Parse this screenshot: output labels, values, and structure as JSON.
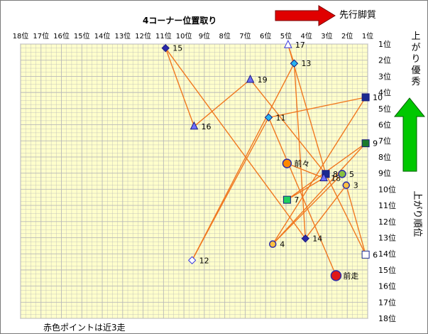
{
  "chart_data": {
    "type": "scatter",
    "title": "4コーナー位置取り",
    "x_arrow_label": "先行脚質",
    "y_arrow_top_label": "上がり優秀",
    "y_arrow_bottom_label": "上がり順位",
    "footnote": "赤色ポイントは近3走",
    "x_ticks": [
      "18位",
      "17位",
      "16位",
      "15位",
      "14位",
      "13位",
      "12位",
      "11位",
      "10位",
      "9位",
      "8位",
      "7位",
      "6位",
      "5位",
      "4位",
      "3位",
      "2位",
      "1位"
    ],
    "y_ticks": [
      "1位",
      "2位",
      "3位",
      "4位",
      "5位",
      "6位",
      "7位",
      "8位",
      "9位",
      "10位",
      "11位",
      "12位",
      "13位",
      "14位",
      "15位",
      "16位",
      "17位",
      "18位"
    ],
    "xlim": [
      18,
      1
    ],
    "ylim": [
      1,
      18
    ],
    "colors": {
      "plot_bg": "#ffffcc",
      "grid": "#b8b8b8",
      "line": "#f07820",
      "arrow_red": "#e00000",
      "arrow_green": "#00c800"
    },
    "points": [
      {
        "label": "15",
        "x": 10.9,
        "y": 1.25,
        "shape": "diamond",
        "fill": "#2a2aa8"
      },
      {
        "label": "17",
        "x": 4.9,
        "y": 1.05,
        "shape": "triangle",
        "fill": "#ffffff",
        "stroke": "#3a3adf"
      },
      {
        "label": "13",
        "x": 4.6,
        "y": 2.2,
        "shape": "diamond",
        "fill": "#28b4f0"
      },
      {
        "label": "19",
        "x": 6.75,
        "y": 3.2,
        "shape": "triangle",
        "fill": "#6a6af0"
      },
      {
        "label": "10",
        "x": 1.1,
        "y": 4.3,
        "shape": "square",
        "fill": "#1a2a90"
      },
      {
        "label": "11",
        "x": 5.85,
        "y": 5.55,
        "shape": "diamond",
        "fill": "#28b4f0"
      },
      {
        "label": "16",
        "x": 9.5,
        "y": 6.1,
        "shape": "triangle",
        "fill": "#7070ff"
      },
      {
        "label": "9",
        "x": 1.1,
        "y": 7.15,
        "shape": "square",
        "fill": "#1a7a2a"
      },
      {
        "label": "前々",
        "x": 4.95,
        "y": 8.4,
        "shape": "circle",
        "fill": "#ff8800",
        "stroke": "#2a2aa8",
        "r": 6
      },
      {
        "label": "8",
        "x": 3.05,
        "y": 9.05,
        "shape": "square",
        "fill": "#1a2a90"
      },
      {
        "label": "18",
        "x": 3.15,
        "y": 9.3,
        "shape": "triangle",
        "fill": "#7070ff"
      },
      {
        "label": "5",
        "x": 2.25,
        "y": 9.05,
        "shape": "circle",
        "fill": "#88c040",
        "stroke": "#2a2aa8",
        "r": 5
      },
      {
        "label": "3",
        "x": 2.05,
        "y": 9.75,
        "shape": "circle",
        "fill": "#ffc040",
        "stroke": "#2a2aa8",
        "r": 4.5
      },
      {
        "label": "7",
        "x": 4.95,
        "y": 10.65,
        "shape": "square",
        "fill": "#20d060"
      },
      {
        "label": "14",
        "x": 4.05,
        "y": 13.05,
        "shape": "diamond",
        "fill": "#2a2aa8"
      },
      {
        "label": "4",
        "x": 5.65,
        "y": 13.4,
        "shape": "circle",
        "fill": "#ffc040",
        "stroke": "#2a2aa8",
        "r": 4.5
      },
      {
        "label": "6",
        "x": 1.1,
        "y": 14.05,
        "shape": "square",
        "fill": "#ffffff",
        "stroke": "#1a2a90"
      },
      {
        "label": "12",
        "x": 9.6,
        "y": 14.4,
        "shape": "diamond",
        "fill": "#ffffff",
        "stroke": "#3a3adf"
      },
      {
        "label": "前走",
        "x": 2.55,
        "y": 15.35,
        "shape": "circle",
        "fill": "#e01818",
        "stroke": "#2a2aa8",
        "r": 7
      }
    ],
    "connections": [
      [
        "15",
        "16"
      ],
      [
        "16",
        "19"
      ],
      [
        "19",
        "8"
      ],
      [
        "15",
        "14"
      ],
      [
        "17",
        "13"
      ],
      [
        "17",
        "8"
      ],
      [
        "13",
        "12"
      ],
      [
        "13",
        "14"
      ],
      [
        "11",
        "12"
      ],
      [
        "11",
        "10"
      ],
      [
        "11",
        "前走"
      ],
      [
        "10",
        "4"
      ],
      [
        "9",
        "4"
      ],
      [
        "9",
        "7"
      ],
      [
        "8",
        "6"
      ],
      [
        "18",
        "7"
      ],
      [
        "18",
        "前々"
      ],
      [
        "3",
        "6"
      ],
      [
        "3",
        "14"
      ],
      [
        "5",
        "4"
      ]
    ]
  }
}
